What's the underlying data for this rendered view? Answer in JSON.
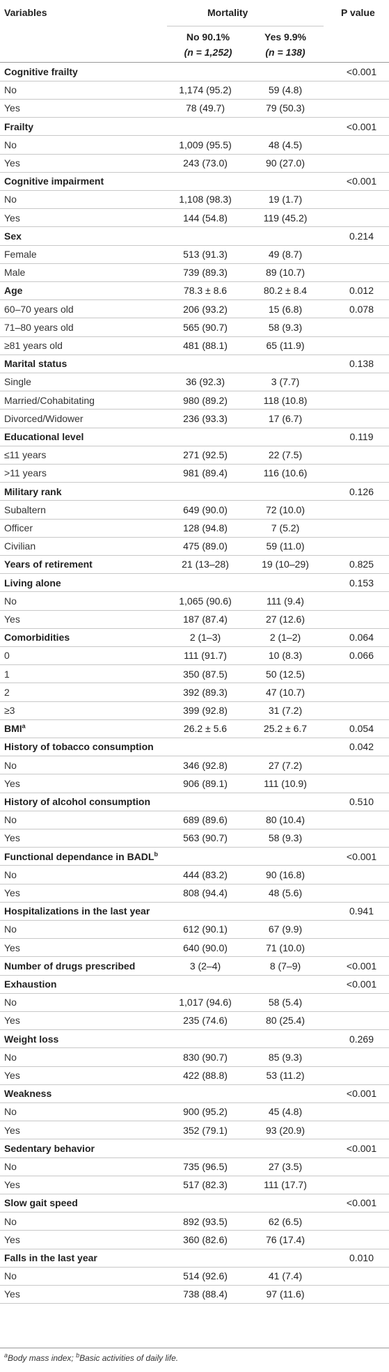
{
  "header": {
    "variables": "Variables",
    "mortality": "Mortality",
    "p_value": "P value",
    "no_col_line1": "No 90.1%",
    "no_col_line2": "(n = 1,252)",
    "yes_col_line1": "Yes 9.9%",
    "yes_col_line2": "(n = 138)"
  },
  "rows": [
    {
      "label": "Cognitive frailty",
      "no": "",
      "yes": "",
      "p": "<0.001",
      "bold": true
    },
    {
      "label": "No",
      "no": "1,174 (95.2)",
      "yes": "59 (4.8)",
      "p": ""
    },
    {
      "label": "Yes",
      "no": "78 (49.7)",
      "yes": "79 (50.3)",
      "p": ""
    },
    {
      "label": "Frailty",
      "no": "",
      "yes": "",
      "p": "<0.001",
      "bold": true
    },
    {
      "label": "No",
      "no": "1,009 (95.5)",
      "yes": "48 (4.5)",
      "p": ""
    },
    {
      "label": "Yes",
      "no": "243 (73.0)",
      "yes": "90 (27.0)",
      "p": ""
    },
    {
      "label": "Cognitive impairment",
      "no": "",
      "yes": "",
      "p": "<0.001",
      "bold": true
    },
    {
      "label": "No",
      "no": "1,108 (98.3)",
      "yes": "19 (1.7)",
      "p": ""
    },
    {
      "label": "Yes",
      "no": "144 (54.8)",
      "yes": "119 (45.2)",
      "p": ""
    },
    {
      "label": "Sex",
      "no": "",
      "yes": "",
      "p": "0.214",
      "bold": true
    },
    {
      "label": "Female",
      "no": "513 (91.3)",
      "yes": "49 (8.7)",
      "p": ""
    },
    {
      "label": "Male",
      "no": "739 (89.3)",
      "yes": "89 (10.7)",
      "p": ""
    },
    {
      "label": "Age",
      "no": "78.3 ± 8.6",
      "yes": "80.2 ± 8.4",
      "p": "0.012",
      "bold": true
    },
    {
      "label": "60–70 years old",
      "no": "206 (93.2)",
      "yes": "15 (6.8)",
      "p": "0.078"
    },
    {
      "label": "71–80 years old",
      "no": "565 (90.7)",
      "yes": "58 (9.3)",
      "p": ""
    },
    {
      "label": "≥81 years old",
      "no": "481 (88.1)",
      "yes": "65 (11.9)",
      "p": ""
    },
    {
      "label": "Marital status",
      "no": "",
      "yes": "",
      "p": "0.138",
      "bold": true
    },
    {
      "label": "Single",
      "no": "36 (92.3)",
      "yes": "3 (7.7)",
      "p": ""
    },
    {
      "label": "Married/Cohabitating",
      "no": "980 (89.2)",
      "yes": "118 (10.8)",
      "p": ""
    },
    {
      "label": "Divorced/Widower",
      "no": "236 (93.3)",
      "yes": "17 (6.7)",
      "p": ""
    },
    {
      "label": "Educational level",
      "no": "",
      "yes": "",
      "p": "0.119",
      "bold": true
    },
    {
      "label": "≤11 years",
      "no": "271 (92.5)",
      "yes": "22 (7.5)",
      "p": ""
    },
    {
      "label": ">11 years",
      "no": "981 (89.4)",
      "yes": "116 (10.6)",
      "p": ""
    },
    {
      "label": "Military rank",
      "no": "",
      "yes": "",
      "p": "0.126",
      "bold": true
    },
    {
      "label": "Subaltern",
      "no": "649 (90.0)",
      "yes": "72 (10.0)",
      "p": ""
    },
    {
      "label": "Officer",
      "no": "128 (94.8)",
      "yes": "7 (5.2)",
      "p": ""
    },
    {
      "label": "Civilian",
      "no": "475 (89.0)",
      "yes": "59 (11.0)",
      "p": ""
    },
    {
      "label": "Years of retirement",
      "no": "21 (13–28)",
      "yes": "19 (10–29)",
      "p": "0.825",
      "bold": true
    },
    {
      "label": "Living alone",
      "no": "",
      "yes": "",
      "p": "0.153",
      "bold": true
    },
    {
      "label": "No",
      "no": "1,065 (90.6)",
      "yes": "111 (9.4)",
      "p": ""
    },
    {
      "label": "Yes",
      "no": "187 (87.4)",
      "yes": "27 (12.6)",
      "p": ""
    },
    {
      "label": "Comorbidities",
      "no": "2 (1–3)",
      "yes": "2 (1–2)",
      "p": "0.064",
      "bold": true
    },
    {
      "label": "0",
      "no": "111 (91.7)",
      "yes": "10 (8.3)",
      "p": "0.066"
    },
    {
      "label": "1",
      "no": "350 (87.5)",
      "yes": "50 (12.5)",
      "p": ""
    },
    {
      "label": "2",
      "no": "392 (89.3)",
      "yes": "47 (10.7)",
      "p": ""
    },
    {
      "label": "≥3",
      "no": "399 (92.8)",
      "yes": "31 (7.2)",
      "p": ""
    },
    {
      "label": "BMI",
      "sup": "a",
      "no": "26.2 ± 5.6",
      "yes": "25.2 ± 6.7",
      "p": "0.054",
      "bold": true
    },
    {
      "label": "History of tobacco consumption",
      "no": "",
      "yes": "",
      "p": "0.042",
      "bold": true
    },
    {
      "label": "No",
      "no": "346 (92.8)",
      "yes": "27 (7.2)",
      "p": ""
    },
    {
      "label": "Yes",
      "no": "906 (89.1)",
      "yes": "111 (10.9)",
      "p": ""
    },
    {
      "label": "History of alcohol consumption",
      "no": "",
      "yes": "",
      "p": "0.510",
      "bold": true
    },
    {
      "label": "No",
      "no": "689 (89.6)",
      "yes": "80 (10.4)",
      "p": ""
    },
    {
      "label": "Yes",
      "no": "563 (90.7)",
      "yes": "58 (9.3)",
      "p": ""
    },
    {
      "label": "Functional dependance in BADL",
      "sup": "b",
      "no": "",
      "yes": "",
      "p": "<0.001",
      "bold": true
    },
    {
      "label": "No",
      "no": "444 (83.2)",
      "yes": "90 (16.8)",
      "p": ""
    },
    {
      "label": "Yes",
      "no": "808 (94.4)",
      "yes": "48 (5.6)",
      "p": ""
    },
    {
      "label": "Hospitalizations in the last year",
      "no": "",
      "yes": "",
      "p": "0.941",
      "bold": true
    },
    {
      "label": "No",
      "no": "612 (90.1)",
      "yes": "67 (9.9)",
      "p": ""
    },
    {
      "label": "Yes",
      "no": "640 (90.0)",
      "yes": "71 (10.0)",
      "p": ""
    },
    {
      "label": "Number of drugs prescribed",
      "no": "3 (2–4)",
      "yes": "8 (7–9)",
      "p": "<0.001",
      "bold": true
    },
    {
      "label": "Exhaustion",
      "no": "",
      "yes": "",
      "p": "<0.001",
      "bold": true
    },
    {
      "label": "No",
      "no": "1,017 (94.6)",
      "yes": "58 (5.4)",
      "p": ""
    },
    {
      "label": "Yes",
      "no": "235 (74.6)",
      "yes": "80 (25.4)",
      "p": ""
    },
    {
      "label": "Weight loss",
      "no": "",
      "yes": "",
      "p": "0.269",
      "bold": true
    },
    {
      "label": "No",
      "no": "830 (90.7)",
      "yes": "85 (9.3)",
      "p": ""
    },
    {
      "label": "Yes",
      "no": "422 (88.8)",
      "yes": "53 (11.2)",
      "p": ""
    },
    {
      "label": "Weakness",
      "no": "",
      "yes": "",
      "p": "<0.001",
      "bold": true
    },
    {
      "label": "No",
      "no": "900 (95.2)",
      "yes": "45 (4.8)",
      "p": ""
    },
    {
      "label": "Yes",
      "no": "352 (79.1)",
      "yes": "93 (20.9)",
      "p": ""
    },
    {
      "label": "Sedentary behavior",
      "no": "",
      "yes": "",
      "p": "<0.001",
      "bold": true
    },
    {
      "label": "No",
      "no": "735 (96.5)",
      "yes": "27 (3.5)",
      "p": ""
    },
    {
      "label": "Yes",
      "no": "517 (82.3)",
      "yes": "111 (17.7)",
      "p": ""
    },
    {
      "label": "Slow gait speed",
      "no": "",
      "yes": "",
      "p": "<0.001",
      "bold": true
    },
    {
      "label": "No",
      "no": "892 (93.5)",
      "yes": "62 (6.5)",
      "p": ""
    },
    {
      "label": "Yes",
      "no": "360 (82.6)",
      "yes": "76 (17.4)",
      "p": ""
    },
    {
      "label": "Falls in the last year",
      "no": "",
      "yes": "",
      "p": "0.010",
      "bold": true
    },
    {
      "label": "No",
      "no": "514 (92.6)",
      "yes": "41 (7.4)",
      "p": ""
    },
    {
      "label": "Yes",
      "no": "738 (88.4)",
      "yes": "97 (11.6)",
      "p": ""
    }
  ],
  "footnote": {
    "a_mark": "a",
    "a_text": "Body mass index; ",
    "b_mark": "b",
    "b_text": "Basic activities of daily life."
  }
}
